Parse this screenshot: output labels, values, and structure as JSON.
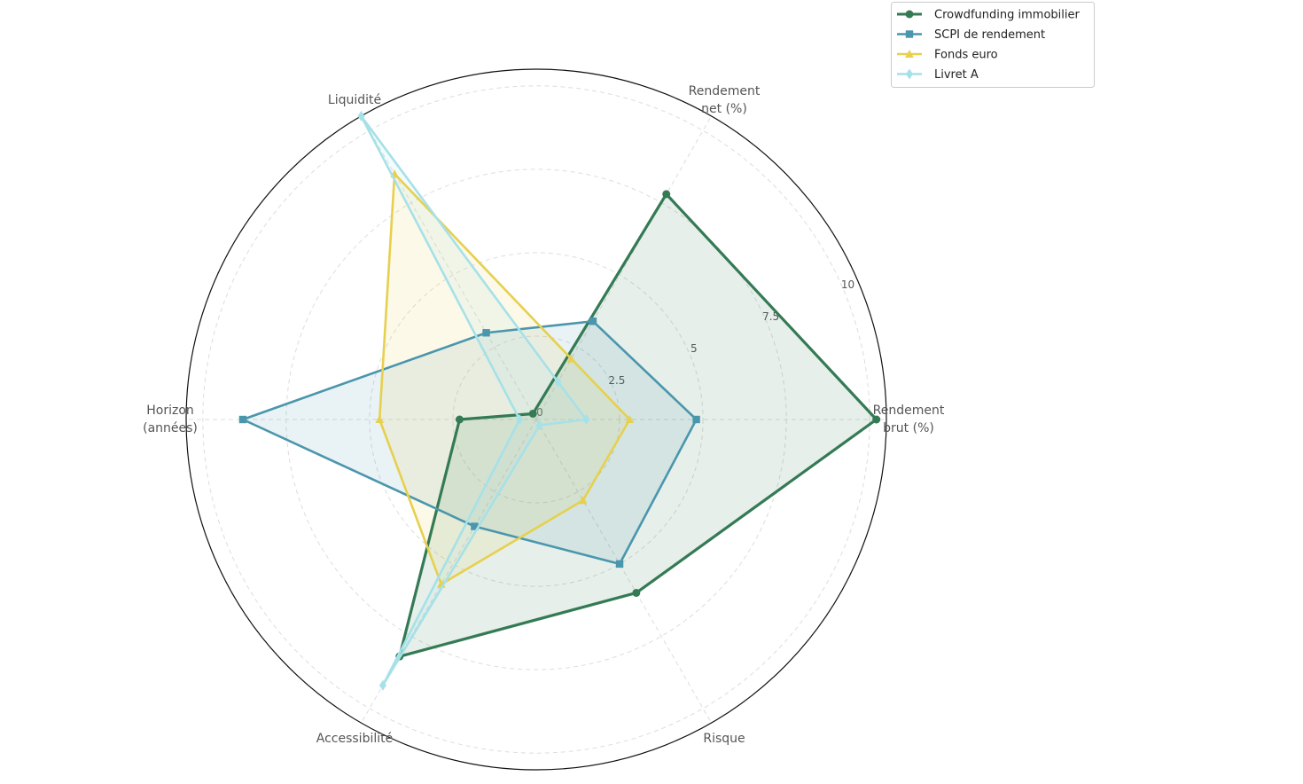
{
  "chart_data": {
    "type": "radar",
    "title": "",
    "axes": [
      [
        "Rendement",
        "brut (%)"
      ],
      [
        "Rendement",
        "net (%)"
      ],
      [
        "Liquidité"
      ],
      [
        "Horizon",
        "(années)"
      ],
      [
        "Accessibilité"
      ],
      [
        "Risque"
      ]
    ],
    "rlim": [
      0,
      10.5
    ],
    "rticks": [
      0,
      2.5,
      5,
      7.5,
      10
    ],
    "rtick_labels": [
      "0",
      "2.5",
      "5",
      "7.5",
      "10"
    ],
    "grid": true,
    "legend_position": "top-right",
    "series": [
      {
        "name": "Crowdfunding immobilier",
        "values": [
          10.2,
          7.8,
          0.2,
          2.3,
          8.2,
          6.0
        ],
        "color": "#347a54",
        "marker": "circle"
      },
      {
        "name": "SCPI de rendement",
        "values": [
          4.8,
          3.4,
          3.0,
          8.8,
          3.7,
          5.0
        ],
        "color": "#4a96ad",
        "marker": "square"
      },
      {
        "name": "Fonds euro",
        "values": [
          2.8,
          2.1,
          8.5,
          4.7,
          5.7,
          2.8
        ],
        "color": "#e6d04e",
        "marker": "triangle"
      },
      {
        "name": "Livret A",
        "values": [
          1.5,
          1.3,
          10.5,
          0.5,
          9.2,
          0.2
        ],
        "color": "#a6e1e8",
        "marker": "diamond"
      }
    ]
  }
}
